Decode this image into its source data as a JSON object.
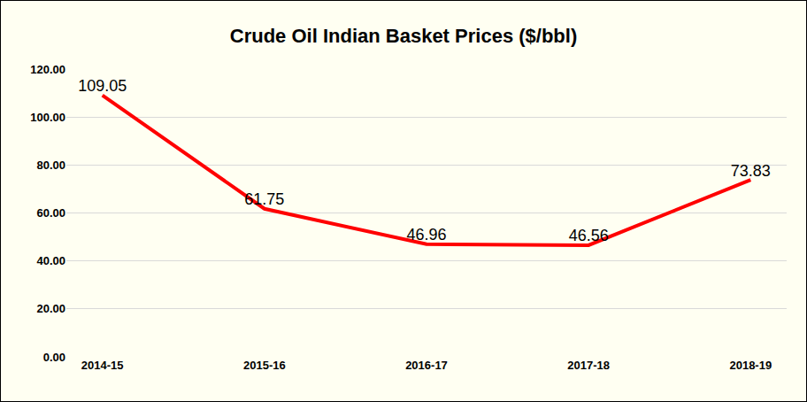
{
  "chart_data": {
    "type": "line",
    "title": "Crude Oil Indian Basket Prices ($/bbl)",
    "categories": [
      "2014-15",
      "2015-16",
      "2016-17",
      "2017-18",
      "2018-19"
    ],
    "values": [
      109.05,
      61.75,
      46.96,
      46.56,
      73.83
    ],
    "color": "#ff0000",
    "ylim": [
      0,
      120
    ],
    "yticks": [
      {
        "value": 0,
        "label": "0.00"
      },
      {
        "value": 20,
        "label": "20.00"
      },
      {
        "value": 40,
        "label": "40.00"
      },
      {
        "value": 60,
        "label": "60.00"
      },
      {
        "value": 80,
        "label": "80.00"
      },
      {
        "value": 100,
        "label": "100.00"
      },
      {
        "value": 120,
        "label": "120.00"
      }
    ],
    "grid": true,
    "data_labels": true
  }
}
